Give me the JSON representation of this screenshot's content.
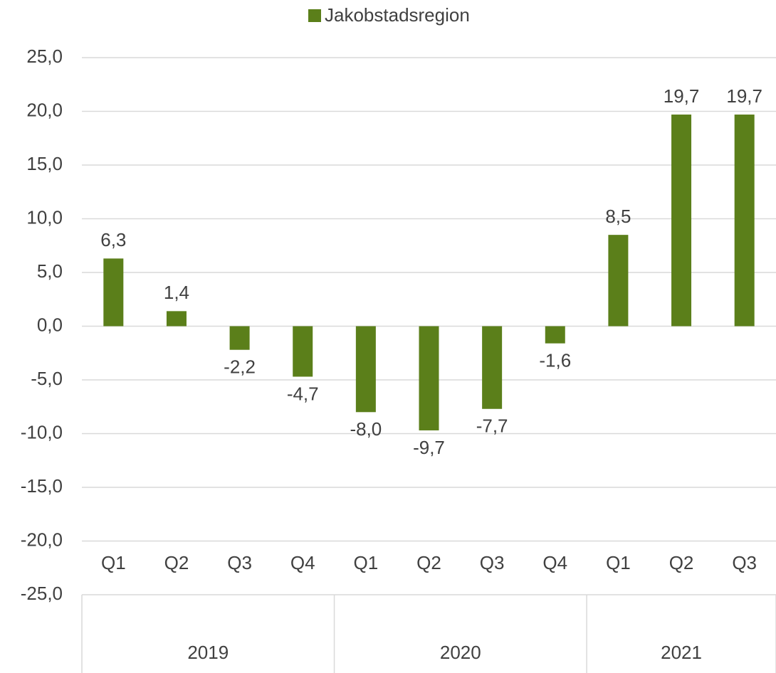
{
  "chart_data": {
    "type": "bar",
    "categories": [
      "Q1",
      "Q2",
      "Q3",
      "Q4",
      "Q1",
      "Q2",
      "Q3",
      "Q4",
      "Q1",
      "Q2",
      "Q3"
    ],
    "groups": [
      {
        "name": "2019",
        "count": 4
      },
      {
        "name": "2020",
        "count": 4
      },
      {
        "name": "2021",
        "count": 3
      }
    ],
    "series": [
      {
        "name": "Jakobstadsregion",
        "color": "#5b7f1a",
        "values": [
          6.3,
          1.4,
          -2.2,
          -4.7,
          -8.0,
          -9.7,
          -7.7,
          -1.6,
          8.5,
          19.7,
          19.7
        ],
        "value_labels": [
          "6,3",
          "1,4",
          "-2,2",
          "-4,7",
          "-8,0",
          "-9,7",
          "-7,7",
          "-1,6",
          "8,5",
          "19,7",
          "19,7"
        ]
      }
    ],
    "ylim": [
      -25,
      25
    ],
    "yticks": [
      {
        "value": -25,
        "label": "-25,0"
      },
      {
        "value": -20,
        "label": "-20,0"
      },
      {
        "value": -15,
        "label": "-15,0"
      },
      {
        "value": -10,
        "label": "-10,0"
      },
      {
        "value": -5,
        "label": "-5,0"
      },
      {
        "value": 0,
        "label": "0,0"
      },
      {
        "value": 5,
        "label": "5,0"
      },
      {
        "value": 10,
        "label": "10,0"
      },
      {
        "value": 15,
        "label": "15,0"
      },
      {
        "value": 20,
        "label": "20,0"
      },
      {
        "value": 25,
        "label": "25,0"
      }
    ],
    "grid": true,
    "legend": "top"
  }
}
